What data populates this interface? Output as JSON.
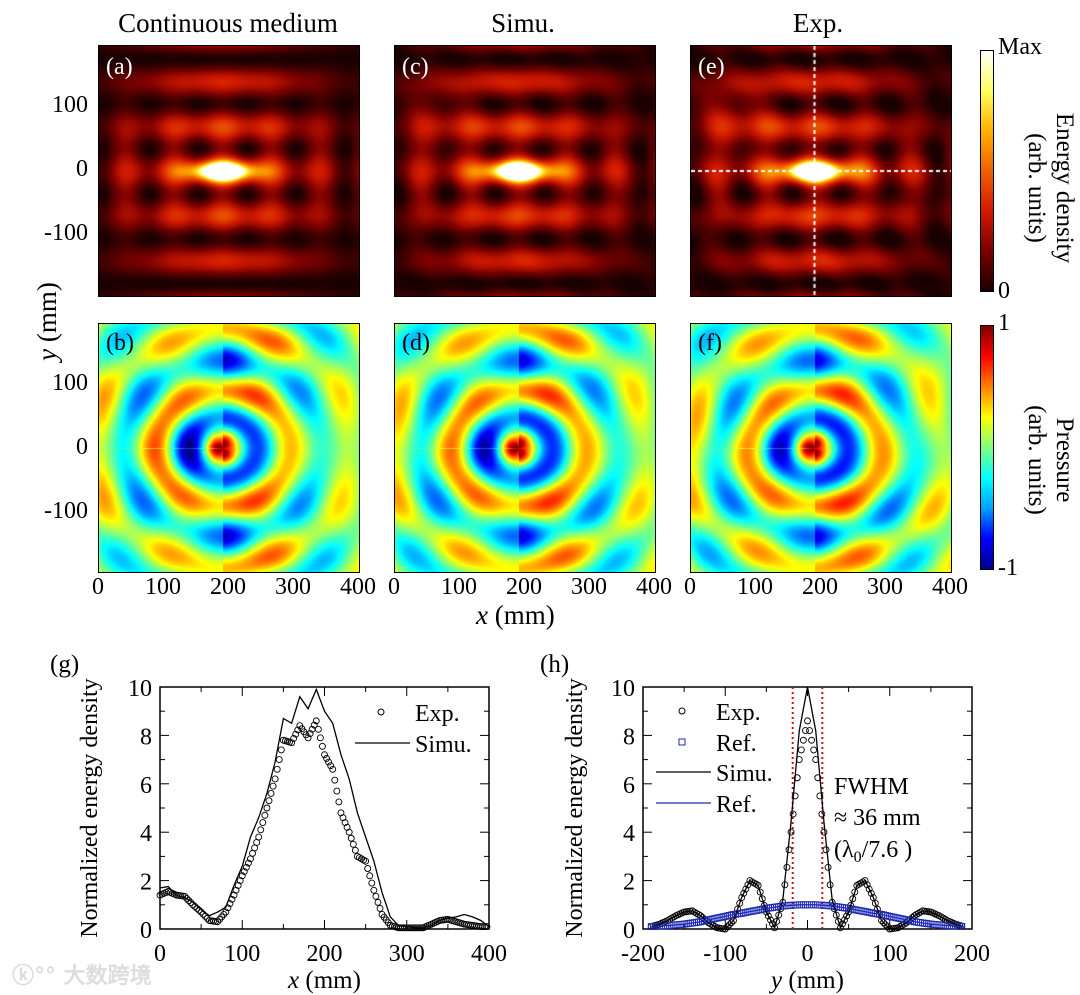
{
  "titles": [
    "Continuous medium",
    "Simu.",
    "Exp."
  ],
  "panel_labels": [
    "(a)",
    "(b)",
    "(c)",
    "(d)",
    "(e)",
    "(f)",
    "(g)",
    "(h)"
  ],
  "heatmaps": {
    "x_ticks": [
      "0",
      "100",
      "200",
      "300",
      "400"
    ],
    "y_ticks": [
      "100",
      "0",
      "-100"
    ],
    "xlabel_var": "x",
    "xlabel_unit": " (mm)",
    "ylabel_var": "y",
    "ylabel_unit": " (mm)",
    "energy_colorbar": {
      "max_label": "Max",
      "min_label": "0",
      "title": "Energy density",
      "subtitle": "(arb. units)"
    },
    "pressure_colorbar": {
      "max_label": "1",
      "min_label": "-1",
      "title": "Pressure",
      "subtitle": "(arb. units)"
    },
    "crosshair_on_exp": {
      "x": 190,
      "y": 0
    }
  },
  "chart_data": [
    {
      "type": "line",
      "panel": "(g)",
      "xlabel_var": "x",
      "xlabel_unit": " (mm)",
      "ylabel": "Normalized energy density",
      "xlim": [
        0,
        400
      ],
      "ylim": [
        0,
        10
      ],
      "x_ticks": [
        0,
        100,
        200,
        300,
        400
      ],
      "y_ticks": [
        0,
        2,
        4,
        6,
        8,
        10
      ],
      "legend": [
        "Exp.",
        "Simu."
      ],
      "legend_position": "top-right",
      "x": [
        0,
        10,
        20,
        30,
        40,
        50,
        60,
        70,
        80,
        90,
        100,
        110,
        120,
        130,
        140,
        150,
        160,
        170,
        180,
        190,
        200,
        210,
        220,
        230,
        240,
        250,
        260,
        270,
        280,
        290,
        300,
        310,
        320,
        330,
        340,
        350,
        360,
        370,
        380,
        390,
        400
      ],
      "series": [
        {
          "name": "Exp.",
          "style": "circle",
          "values": [
            1.4,
            1.55,
            1.4,
            1.35,
            1.0,
            0.7,
            0.35,
            0.3,
            0.7,
            1.4,
            2.2,
            2.9,
            3.8,
            5.0,
            6.2,
            7.8,
            7.7,
            8.4,
            7.9,
            8.6,
            7.2,
            6.6,
            4.8,
            4.0,
            3.0,
            2.8,
            1.6,
            0.6,
            0.15,
            0.05,
            0.05,
            0.05,
            0.05,
            0.2,
            0.35,
            0.4,
            0.3,
            0.2,
            0.15,
            0.1,
            0.1
          ]
        },
        {
          "name": "Simu.",
          "style": "line",
          "color": "#000000",
          "values": [
            1.7,
            1.75,
            1.4,
            1.3,
            1.1,
            0.8,
            0.55,
            0.7,
            0.9,
            1.8,
            2.6,
            3.8,
            4.6,
            5.6,
            6.9,
            8.7,
            8.5,
            9.6,
            9.1,
            9.9,
            9.0,
            8.5,
            7.2,
            6.2,
            4.8,
            3.8,
            2.8,
            1.5,
            0.5,
            0.15,
            0.1,
            0.05,
            0.05,
            0.15,
            0.35,
            0.45,
            0.5,
            0.6,
            0.5,
            0.35,
            0.1
          ]
        }
      ]
    },
    {
      "type": "line",
      "panel": "(h)",
      "xlabel_var": "y",
      "xlabel_unit": " (mm)",
      "ylabel": "Normalized energy density",
      "xlim": [
        -200,
        200
      ],
      "ylim": [
        0,
        10
      ],
      "x_ticks": [
        -200,
        -100,
        0,
        100,
        200
      ],
      "y_ticks": [
        0,
        2,
        4,
        6,
        8,
        10
      ],
      "legend": [
        "Exp.",
        "Ref.",
        "Simu.",
        "Ref."
      ],
      "legend_position": "top-left",
      "annotation": {
        "line1": "FWHM",
        "line2": "≈ 36 mm",
        "line3_pre": "(λ",
        "line3_sub": "0",
        "line3_post": "/7.6 )"
      },
      "fwhm_markers": [
        -18,
        18
      ],
      "x": [
        -190,
        -180,
        -170,
        -160,
        -150,
        -140,
        -130,
        -120,
        -110,
        -100,
        -90,
        -80,
        -70,
        -60,
        -50,
        -40,
        -30,
        -20,
        -10,
        0,
        10,
        20,
        30,
        40,
        50,
        60,
        70,
        80,
        90,
        100,
        110,
        120,
        130,
        140,
        150,
        160,
        170,
        180,
        190
      ],
      "series": [
        {
          "name": "Exp.",
          "style": "circle",
          "color": "#000000",
          "values": [
            0.1,
            0.2,
            0.35,
            0.55,
            0.7,
            0.75,
            0.55,
            0.25,
            0.05,
            0.0,
            0.35,
            1.3,
            2.0,
            1.8,
            0.7,
            0.05,
            1.1,
            4.0,
            7.0,
            8.6,
            7.0,
            4.0,
            1.1,
            0.05,
            0.7,
            1.8,
            2.0,
            1.3,
            0.35,
            0.0,
            0.05,
            0.25,
            0.55,
            0.75,
            0.7,
            0.55,
            0.35,
            0.2,
            0.1
          ]
        },
        {
          "name": "Ref.",
          "style": "square",
          "color": "#1f2bb5",
          "values": [
            0.1,
            0.12,
            0.14,
            0.17,
            0.2,
            0.25,
            0.3,
            0.38,
            0.45,
            0.52,
            0.6,
            0.65,
            0.72,
            0.78,
            0.85,
            0.9,
            0.95,
            0.98,
            1.0,
            1.0,
            1.0,
            0.98,
            0.95,
            0.9,
            0.85,
            0.78,
            0.72,
            0.65,
            0.6,
            0.52,
            0.45,
            0.38,
            0.3,
            0.25,
            0.2,
            0.17,
            0.14,
            0.12,
            0.1
          ]
        },
        {
          "name": "Simu.",
          "style": "line",
          "color": "#000000",
          "values": [
            0.1,
            0.2,
            0.35,
            0.55,
            0.7,
            0.75,
            0.55,
            0.25,
            0.05,
            0.0,
            0.35,
            1.3,
            2.0,
            1.8,
            0.7,
            0.05,
            1.2,
            4.4,
            8.2,
            10,
            8.2,
            4.4,
            1.2,
            0.05,
            0.7,
            1.8,
            2.0,
            1.3,
            0.35,
            0.0,
            0.05,
            0.25,
            0.55,
            0.75,
            0.7,
            0.55,
            0.35,
            0.2,
            0.1
          ]
        },
        {
          "name": "Ref.",
          "style": "line",
          "color": "#1f2bb5",
          "values": [
            0.1,
            0.12,
            0.14,
            0.17,
            0.2,
            0.25,
            0.3,
            0.38,
            0.45,
            0.52,
            0.6,
            0.65,
            0.72,
            0.78,
            0.85,
            0.9,
            0.95,
            0.98,
            1.0,
            1.0,
            1.0,
            0.98,
            0.95,
            0.9,
            0.85,
            0.78,
            0.72,
            0.65,
            0.6,
            0.52,
            0.45,
            0.38,
            0.3,
            0.25,
            0.2,
            0.17,
            0.14,
            0.12,
            0.1
          ]
        }
      ]
    }
  ],
  "watermark": "大数跨境"
}
